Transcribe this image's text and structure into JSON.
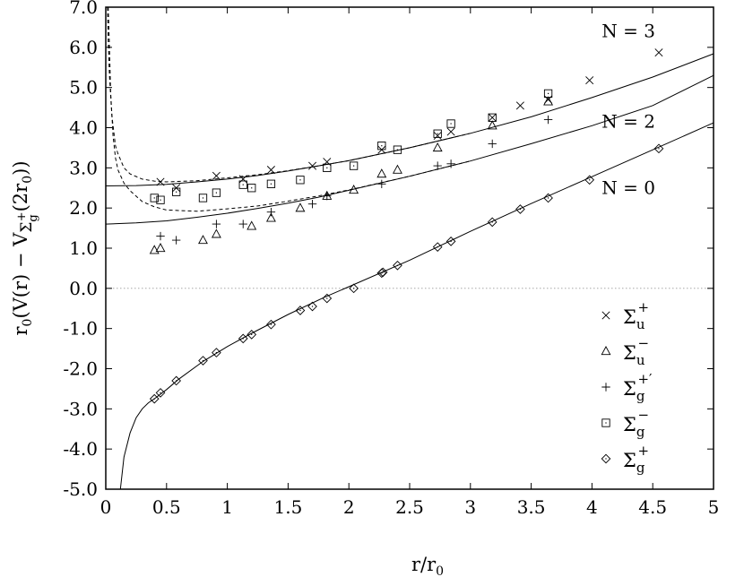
{
  "chart_data": {
    "type": "scatter",
    "title": "",
    "xlabel": "r/r",
    "xlabel_sub": "0",
    "ylabel_parts": [
      "r",
      "0",
      "(V(r) − V",
      "Σ",
      "g",
      "+",
      "(2r",
      "0",
      "))"
    ],
    "xlim": [
      0,
      5
    ],
    "ylim": [
      -5,
      7
    ],
    "x_ticks": [
      0,
      0.5,
      1,
      1.5,
      2,
      2.5,
      3,
      3.5,
      4,
      4.5,
      5
    ],
    "x_tick_labels": [
      "0",
      "0.5",
      "1",
      "1.5",
      "2",
      "2.5",
      "3",
      "3.5",
      "4",
      "4.5",
      "5"
    ],
    "y_ticks": [
      -5,
      -4,
      -3,
      -2,
      -1,
      0,
      1,
      2,
      3,
      4,
      5,
      6,
      7
    ],
    "y_tick_labels": [
      "-5.0",
      "-4.0",
      "-3.0",
      "-2.0",
      "-1.0",
      "0.0",
      "1.0",
      "2.0",
      "3.0",
      "4.0",
      "5.0",
      "6.0",
      "7.0"
    ],
    "zero_line": true,
    "legend_position": "bottom-right",
    "curve_labels": [
      {
        "text": "N = 3",
        "x": 4.3,
        "y": 6.25
      },
      {
        "text": "N = 2",
        "x": 4.3,
        "y": 4.0
      },
      {
        "text": "N = 0",
        "x": 4.3,
        "y": 2.35
      }
    ],
    "series": [
      {
        "marker": "cross",
        "label_main": "Σ",
        "label_sub": "u",
        "label_sup": "+",
        "x": [
          0.45,
          0.58,
          0.91,
          1.13,
          1.36,
          1.7,
          1.82,
          2.27,
          2.73,
          2.84,
          3.18,
          3.41,
          3.64,
          3.98,
          4.55
        ],
        "y": [
          2.65,
          2.5,
          2.8,
          2.72,
          2.95,
          3.05,
          3.15,
          3.45,
          3.8,
          3.9,
          4.25,
          4.55,
          4.7,
          5.18,
          5.87
        ]
      },
      {
        "marker": "triangle",
        "label_main": "Σ",
        "label_sub": "u",
        "label_sup": "−",
        "x": [
          0.4,
          0.45,
          0.8,
          0.91,
          1.2,
          1.36,
          1.6,
          1.82,
          2.04,
          2.27,
          2.4,
          2.73,
          3.18,
          3.64
        ],
        "y": [
          0.95,
          1.0,
          1.2,
          1.35,
          1.55,
          1.75,
          2.0,
          2.3,
          2.45,
          2.85,
          2.95,
          3.5,
          4.05,
          4.65
        ]
      },
      {
        "marker": "plus",
        "label_main": "Σ",
        "label_sub": "g",
        "label_sup": "+′",
        "x": [
          0.45,
          0.58,
          0.91,
          1.13,
          1.36,
          1.7,
          1.82,
          2.27,
          2.73,
          2.84,
          3.18,
          3.64
        ],
        "y": [
          1.3,
          1.2,
          1.6,
          1.6,
          1.9,
          2.1,
          2.3,
          2.6,
          3.05,
          3.1,
          3.6,
          4.2
        ]
      },
      {
        "marker": "square",
        "label_main": "Σ",
        "label_sub": "g",
        "label_sup": "−",
        "x": [
          0.4,
          0.45,
          0.58,
          0.8,
          0.91,
          1.13,
          1.2,
          1.36,
          1.6,
          1.82,
          2.04,
          2.27,
          2.4,
          2.73,
          2.84,
          3.18,
          3.64
        ],
        "y": [
          2.25,
          2.2,
          2.4,
          2.25,
          2.38,
          2.58,
          2.5,
          2.6,
          2.7,
          3.0,
          3.05,
          3.55,
          3.45,
          3.85,
          4.1,
          4.25,
          4.85
        ]
      },
      {
        "marker": "diamond",
        "label_main": "Σ",
        "label_sub": "g",
        "label_sup": "+",
        "x": [
          0.4,
          0.45,
          0.58,
          0.8,
          0.91,
          1.13,
          1.2,
          1.36,
          1.6,
          1.7,
          1.82,
          2.04,
          2.27,
          2.28,
          2.4,
          2.73,
          2.84,
          3.18,
          3.41,
          3.64,
          3.98,
          4.55
        ],
        "y": [
          -2.75,
          -2.6,
          -2.3,
          -1.8,
          -1.6,
          -1.25,
          -1.15,
          -0.9,
          -0.55,
          -0.45,
          -0.25,
          0.0,
          0.38,
          0.4,
          0.57,
          1.03,
          1.17,
          1.65,
          1.97,
          2.25,
          2.7,
          3.48
        ]
      }
    ],
    "fit_curves": [
      {
        "style": "solid",
        "x": [
          0.12,
          0.15,
          0.2,
          0.25,
          0.3,
          0.35,
          0.4,
          0.5,
          0.6,
          0.8,
          1.0,
          1.2,
          1.5,
          1.8,
          2.0,
          2.5,
          3.0,
          3.5,
          4.0,
          4.5,
          5.0
        ],
        "y": [
          -5.0,
          -4.2,
          -3.6,
          -3.22,
          -3.0,
          -2.85,
          -2.75,
          -2.52,
          -2.26,
          -1.82,
          -1.45,
          -1.12,
          -0.65,
          -0.22,
          0.04,
          0.7,
          1.42,
          2.11,
          2.78,
          3.45,
          4.12
        ]
      },
      {
        "style": "solid",
        "x": [
          0,
          0.25,
          0.5,
          0.75,
          1.0,
          1.25,
          1.5,
          1.75,
          2.0,
          2.5,
          3.0,
          3.5,
          4.0,
          4.5,
          5.0
        ],
        "y": [
          1.6,
          1.63,
          1.68,
          1.77,
          1.87,
          1.99,
          2.12,
          2.27,
          2.44,
          2.79,
          3.17,
          3.6,
          4.05,
          4.55,
          5.3
        ]
      },
      {
        "style": "solid",
        "x": [
          0,
          0.25,
          0.5,
          0.75,
          1.0,
          1.25,
          1.5,
          1.75,
          2.0,
          2.5,
          3.0,
          3.5,
          4.0,
          4.5,
          5.0
        ],
        "y": [
          2.55,
          2.56,
          2.59,
          2.65,
          2.72,
          2.81,
          2.92,
          3.05,
          3.18,
          3.5,
          3.86,
          4.27,
          4.75,
          5.26,
          5.84
        ]
      },
      {
        "style": "dashed",
        "x": [
          0.02,
          0.03,
          0.04,
          0.06,
          0.08,
          0.1,
          0.15,
          0.2,
          0.3,
          0.4,
          0.5,
          0.75,
          1.0,
          1.25,
          1.5,
          1.75,
          2.0,
          2.5,
          3.0
        ],
        "y": [
          7.0,
          6.0,
          4.9,
          3.8,
          3.25,
          2.95,
          2.62,
          2.43,
          2.16,
          2.03,
          1.95,
          1.92,
          1.98,
          2.05,
          2.17,
          2.3,
          2.45,
          2.79,
          3.17
        ]
      },
      {
        "style": "dashed",
        "x": [
          0.015,
          0.02,
          0.03,
          0.05,
          0.08,
          0.1,
          0.15,
          0.2,
          0.3,
          0.4,
          0.5,
          0.75,
          1.0,
          1.25,
          1.5,
          1.75,
          2.0,
          2.5,
          3.0
        ],
        "y": [
          7.0,
          6.2,
          5.3,
          4.3,
          3.55,
          3.35,
          3.0,
          2.85,
          2.72,
          2.67,
          2.65,
          2.68,
          2.75,
          2.83,
          2.93,
          3.05,
          3.18,
          3.5,
          3.86
        ]
      }
    ]
  }
}
